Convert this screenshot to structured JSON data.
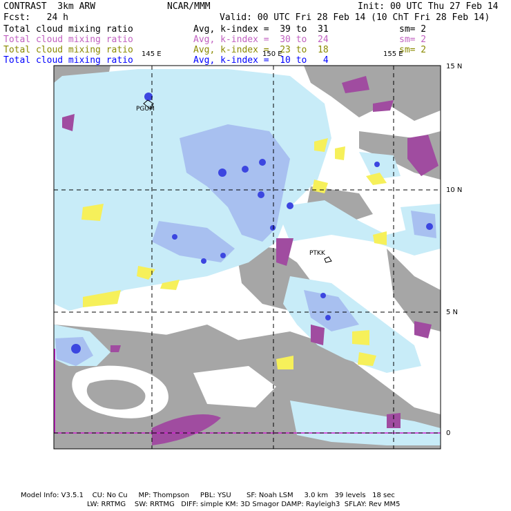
{
  "header": {
    "product": "CONTRAST  3km ARW",
    "center": "NCAR/MMM",
    "init": "Init: 00 UTC Thu 27 Feb 14",
    "fcst": "Fcst:   24 h",
    "valid": "Valid: 00 UTC Fri 28 Feb 14 (10 ChT Fri 28 Feb 14)"
  },
  "legend": [
    {
      "field": "Total cloud mixing ratio",
      "stat": "Avg, k-index =  39 to  31",
      "sm": "sm= 2",
      "color": "#000000"
    },
    {
      "field": "Total cloud mixing ratio",
      "stat": "Avg, k-index =  30 to  24",
      "sm": "sm= 2",
      "color": "#c060c0"
    },
    {
      "field": "Total cloud mixing ratio",
      "stat": "Avg, k-index =  23 to  18",
      "sm": "sm= 2",
      "color": "#8a8a00"
    },
    {
      "field": "Total cloud mixing ratio",
      "stat": "Avg, k-index =  10 to   4",
      "sm": "",
      "color": "#0000ff"
    }
  ],
  "lon_labels": [
    "145 E",
    "150 E",
    "155 E"
  ],
  "lat_labels": [
    "15 N",
    "10 N",
    "5 N",
    "0"
  ],
  "stations": [
    "PGUM",
    "PTKK"
  ],
  "footer": {
    "line1": "Model Info: V3.5.1    CU: No Cu     MP: Thompson     PBL: YSU       SF: Noah LSM     3.0 km   39 levels   18 sec",
    "line2": "LW: RRTMG    SW: RRTMG   DIFF: simple KM: 3D Smagor DAMP: Rayleigh3  SFLAY: Rev MM5"
  }
}
